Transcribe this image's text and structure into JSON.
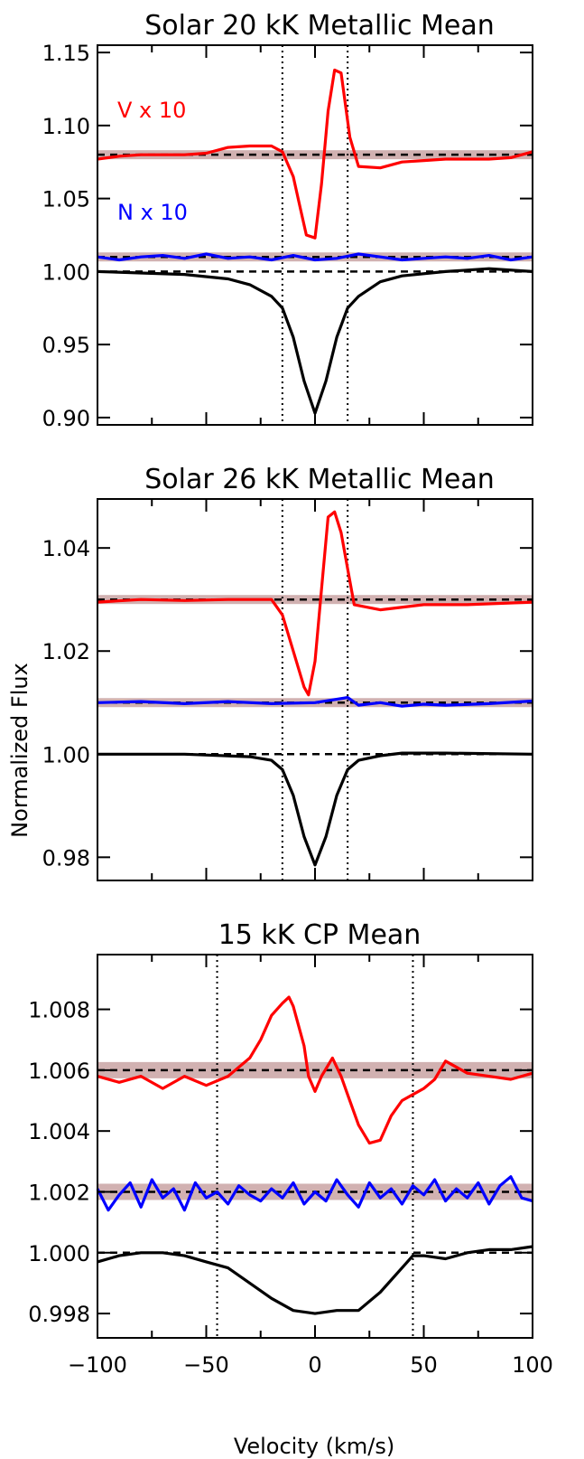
{
  "figure": {
    "ylabel": "Normalized Flux",
    "xlabel": "Velocity (km/s)",
    "xticks": [
      "−100",
      "−50",
      "0",
      "50",
      "100"
    ]
  },
  "chart_data": [
    {
      "type": "line",
      "title": "Solar 20 kK Metallic Mean",
      "xlim": [
        -100,
        100
      ],
      "ylim": [
        0.895,
        1.155
      ],
      "yticks": [
        "0.90",
        "0.95",
        "1.00",
        "1.05",
        "1.10",
        "1.15"
      ],
      "vlines": [
        -15,
        15
      ],
      "annotations": [
        {
          "text": "V x 10",
          "color": "#ff0000"
        },
        {
          "text": "N x 10",
          "color": "#0000ff"
        }
      ],
      "series": [
        {
          "color": "#ff0000",
          "baseline": 1.08,
          "x": [
            -100,
            -90,
            -80,
            -70,
            -60,
            -50,
            -40,
            -30,
            -20,
            -15,
            -10,
            -7,
            -4,
            0,
            3,
            6,
            9,
            12,
            16,
            20,
            30,
            40,
            50,
            60,
            70,
            80,
            90,
            100
          ],
          "y": [
            1.077,
            1.079,
            1.08,
            1.08,
            1.08,
            1.081,
            1.085,
            1.086,
            1.086,
            1.082,
            1.065,
            1.045,
            1.025,
            1.023,
            1.06,
            1.11,
            1.138,
            1.136,
            1.092,
            1.072,
            1.071,
            1.075,
            1.076,
            1.077,
            1.077,
            1.077,
            1.078,
            1.082
          ]
        },
        {
          "color": "#0000ff",
          "baseline": 1.01,
          "x": [
            -100,
            -90,
            -80,
            -70,
            -60,
            -50,
            -40,
            -30,
            -20,
            -10,
            0,
            10,
            20,
            30,
            40,
            50,
            60,
            70,
            80,
            90,
            100
          ],
          "y": [
            1.01,
            1.008,
            1.01,
            1.011,
            1.009,
            1.012,
            1.009,
            1.01,
            1.008,
            1.011,
            1.008,
            1.009,
            1.012,
            1.01,
            1.008,
            1.009,
            1.01,
            1.009,
            1.011,
            1.008,
            1.01
          ]
        },
        {
          "color": "#000000",
          "baseline": 1.0,
          "x": [
            -100,
            -80,
            -60,
            -40,
            -30,
            -20,
            -15,
            -10,
            -5,
            0,
            5,
            10,
            15,
            20,
            30,
            40,
            60,
            80,
            100
          ],
          "y": [
            1.0,
            0.999,
            0.998,
            0.995,
            0.991,
            0.983,
            0.975,
            0.955,
            0.925,
            0.903,
            0.925,
            0.955,
            0.975,
            0.983,
            0.993,
            0.997,
            1.0,
            1.002,
            1.0
          ]
        }
      ]
    },
    {
      "type": "line",
      "title": "Solar 26 kK Metallic Mean",
      "xlim": [
        -100,
        100
      ],
      "ylim": [
        0.9755,
        1.0495
      ],
      "yticks": [
        "0.98",
        "1.00",
        "1.02",
        "1.04"
      ],
      "vlines": [
        -15,
        15
      ],
      "series": [
        {
          "color": "#ff0000",
          "baseline": 1.03,
          "x": [
            -100,
            -80,
            -60,
            -40,
            -20,
            -15,
            -10,
            -5,
            -3,
            0,
            3,
            6,
            9,
            12,
            15,
            18,
            30,
            50,
            70,
            100
          ],
          "y": [
            1.0295,
            1.03,
            1.0298,
            1.03,
            1.03,
            1.027,
            1.02,
            1.013,
            1.0115,
            1.018,
            1.032,
            1.046,
            1.047,
            1.043,
            1.036,
            1.029,
            1.028,
            1.029,
            1.029,
            1.0295
          ]
        },
        {
          "color": "#0000ff",
          "baseline": 1.01,
          "x": [
            -100,
            -80,
            -60,
            -40,
            -20,
            0,
            15,
            20,
            30,
            40,
            50,
            60,
            80,
            100
          ],
          "y": [
            1.01,
            1.0102,
            1.0098,
            1.0102,
            1.0098,
            1.01,
            1.011,
            1.0095,
            1.01,
            1.0093,
            1.0097,
            1.0095,
            1.0098,
            1.0103
          ]
        },
        {
          "color": "#000000",
          "baseline": 1.0,
          "x": [
            -100,
            -60,
            -30,
            -20,
            -15,
            -10,
            -5,
            0,
            5,
            10,
            15,
            20,
            30,
            40,
            60,
            100
          ],
          "y": [
            1.0,
            1.0,
            0.9995,
            0.9988,
            0.997,
            0.992,
            0.984,
            0.9785,
            0.984,
            0.992,
            0.997,
            0.9988,
            0.9997,
            1.0002,
            1.0002,
            1.0
          ]
        }
      ]
    },
    {
      "type": "line",
      "title": "15 kK CP Mean",
      "xlim": [
        -100,
        100
      ],
      "ylim": [
        0.9972,
        1.0098
      ],
      "yticks": [
        "0.998",
        "1.000",
        "1.002",
        "1.004",
        "1.006",
        "1.008"
      ],
      "vlines": [
        -45,
        45
      ],
      "series": [
        {
          "color": "#ff0000",
          "baseline": 1.006,
          "x": [
            -100,
            -90,
            -80,
            -70,
            -60,
            -50,
            -40,
            -30,
            -25,
            -20,
            -15,
            -12,
            -10,
            -5,
            -3,
            0,
            3,
            8,
            12,
            15,
            20,
            25,
            30,
            35,
            40,
            45,
            50,
            55,
            60,
            70,
            80,
            90,
            100
          ],
          "y": [
            1.0058,
            1.0056,
            1.0058,
            1.0054,
            1.0058,
            1.0055,
            1.0058,
            1.0064,
            1.007,
            1.0078,
            1.0082,
            1.0084,
            1.0081,
            1.0068,
            1.0058,
            1.0053,
            1.0058,
            1.0064,
            1.0058,
            1.0052,
            1.0042,
            1.0036,
            1.0037,
            1.0045,
            1.005,
            1.0052,
            1.0054,
            1.0057,
            1.0063,
            1.0059,
            1.0058,
            1.0057,
            1.0059
          ]
        },
        {
          "color": "#0000ff",
          "baseline": 1.002,
          "x": [
            -100,
            -95,
            -90,
            -85,
            -80,
            -75,
            -70,
            -65,
            -60,
            -55,
            -50,
            -45,
            -40,
            -35,
            -30,
            -25,
            -20,
            -15,
            -10,
            -5,
            0,
            5,
            10,
            15,
            20,
            25,
            30,
            35,
            40,
            45,
            50,
            55,
            60,
            65,
            70,
            75,
            80,
            85,
            90,
            95,
            100
          ],
          "y": [
            1.0021,
            1.0014,
            1.0019,
            1.0023,
            1.0015,
            1.0024,
            1.0018,
            1.0021,
            1.0014,
            1.0023,
            1.0018,
            1.002,
            1.0016,
            1.0022,
            1.0019,
            1.0017,
            1.0021,
            1.0018,
            1.0023,
            1.0016,
            1.002,
            1.0017,
            1.0024,
            1.0019,
            1.0015,
            1.0023,
            1.0018,
            1.0021,
            1.0016,
            1.0022,
            1.0019,
            1.0024,
            1.0017,
            1.0021,
            1.0018,
            1.0023,
            1.0016,
            1.0022,
            1.0025,
            1.0018,
            1.0017
          ]
        },
        {
          "color": "#000000",
          "baseline": 1.0,
          "x": [
            -100,
            -90,
            -80,
            -70,
            -60,
            -50,
            -40,
            -30,
            -20,
            -10,
            0,
            10,
            20,
            30,
            40,
            45,
            50,
            60,
            70,
            80,
            90,
            100
          ],
          "y": [
            0.9997,
            0.9999,
            1.0,
            1.0,
            0.9999,
            0.9997,
            0.9995,
            0.999,
            0.9985,
            0.9981,
            0.998,
            0.9981,
            0.9981,
            0.9987,
            0.9995,
            0.9999,
            0.9999,
            0.9998,
            1.0,
            1.0001,
            1.0001,
            1.0002
          ]
        }
      ]
    }
  ]
}
